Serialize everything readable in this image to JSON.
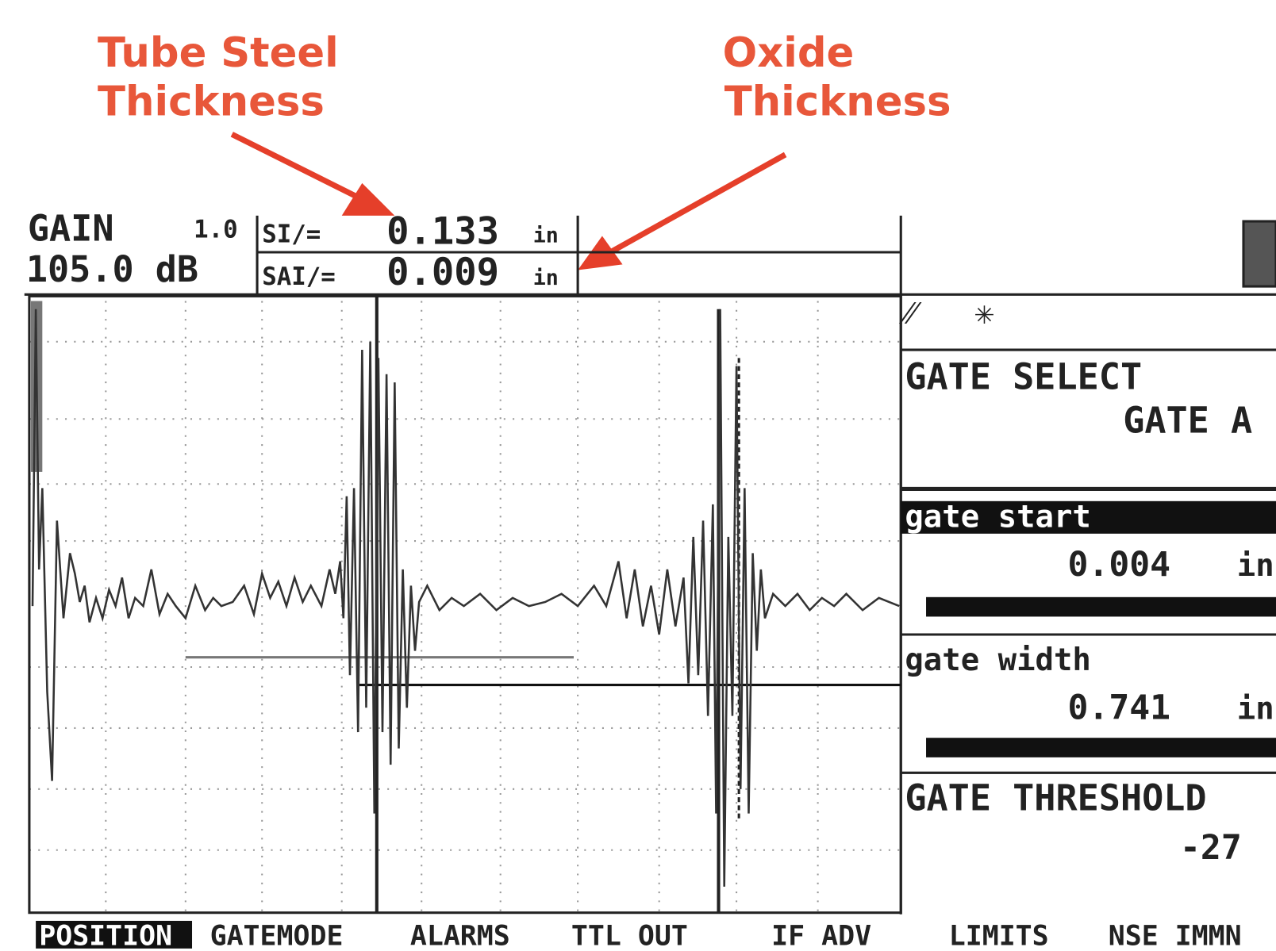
{
  "annotations": {
    "steel": [
      "Tube Steel",
      "Thickness"
    ],
    "oxide": [
      "Oxide",
      "Thickness"
    ]
  },
  "header": {
    "gain_label": "GAIN",
    "gain_step": "1.0",
    "gain_value": "105.0 dB",
    "readings": [
      {
        "label": "SI∕=",
        "value": "0.133",
        "unit": "in"
      },
      {
        "label": "SAI∕=",
        "value": "0.009",
        "unit": "in"
      }
    ]
  },
  "side_panel": {
    "gate_select": "GATE SELECT",
    "gate": "GATE A",
    "gate_start": {
      "label": "gate start",
      "value": "0.004",
      "unit": "in"
    },
    "gate_width": {
      "label": "gate width",
      "value": "0.741",
      "unit": "in"
    },
    "threshold": {
      "label": "GATE THRESHOLD",
      "value": "-27"
    }
  },
  "menu": [
    "POSITION",
    "GATEMODE",
    "ALARMS",
    "TTL OUT",
    "IF ADV",
    "LIMITS",
    "NSE IMMN"
  ]
}
